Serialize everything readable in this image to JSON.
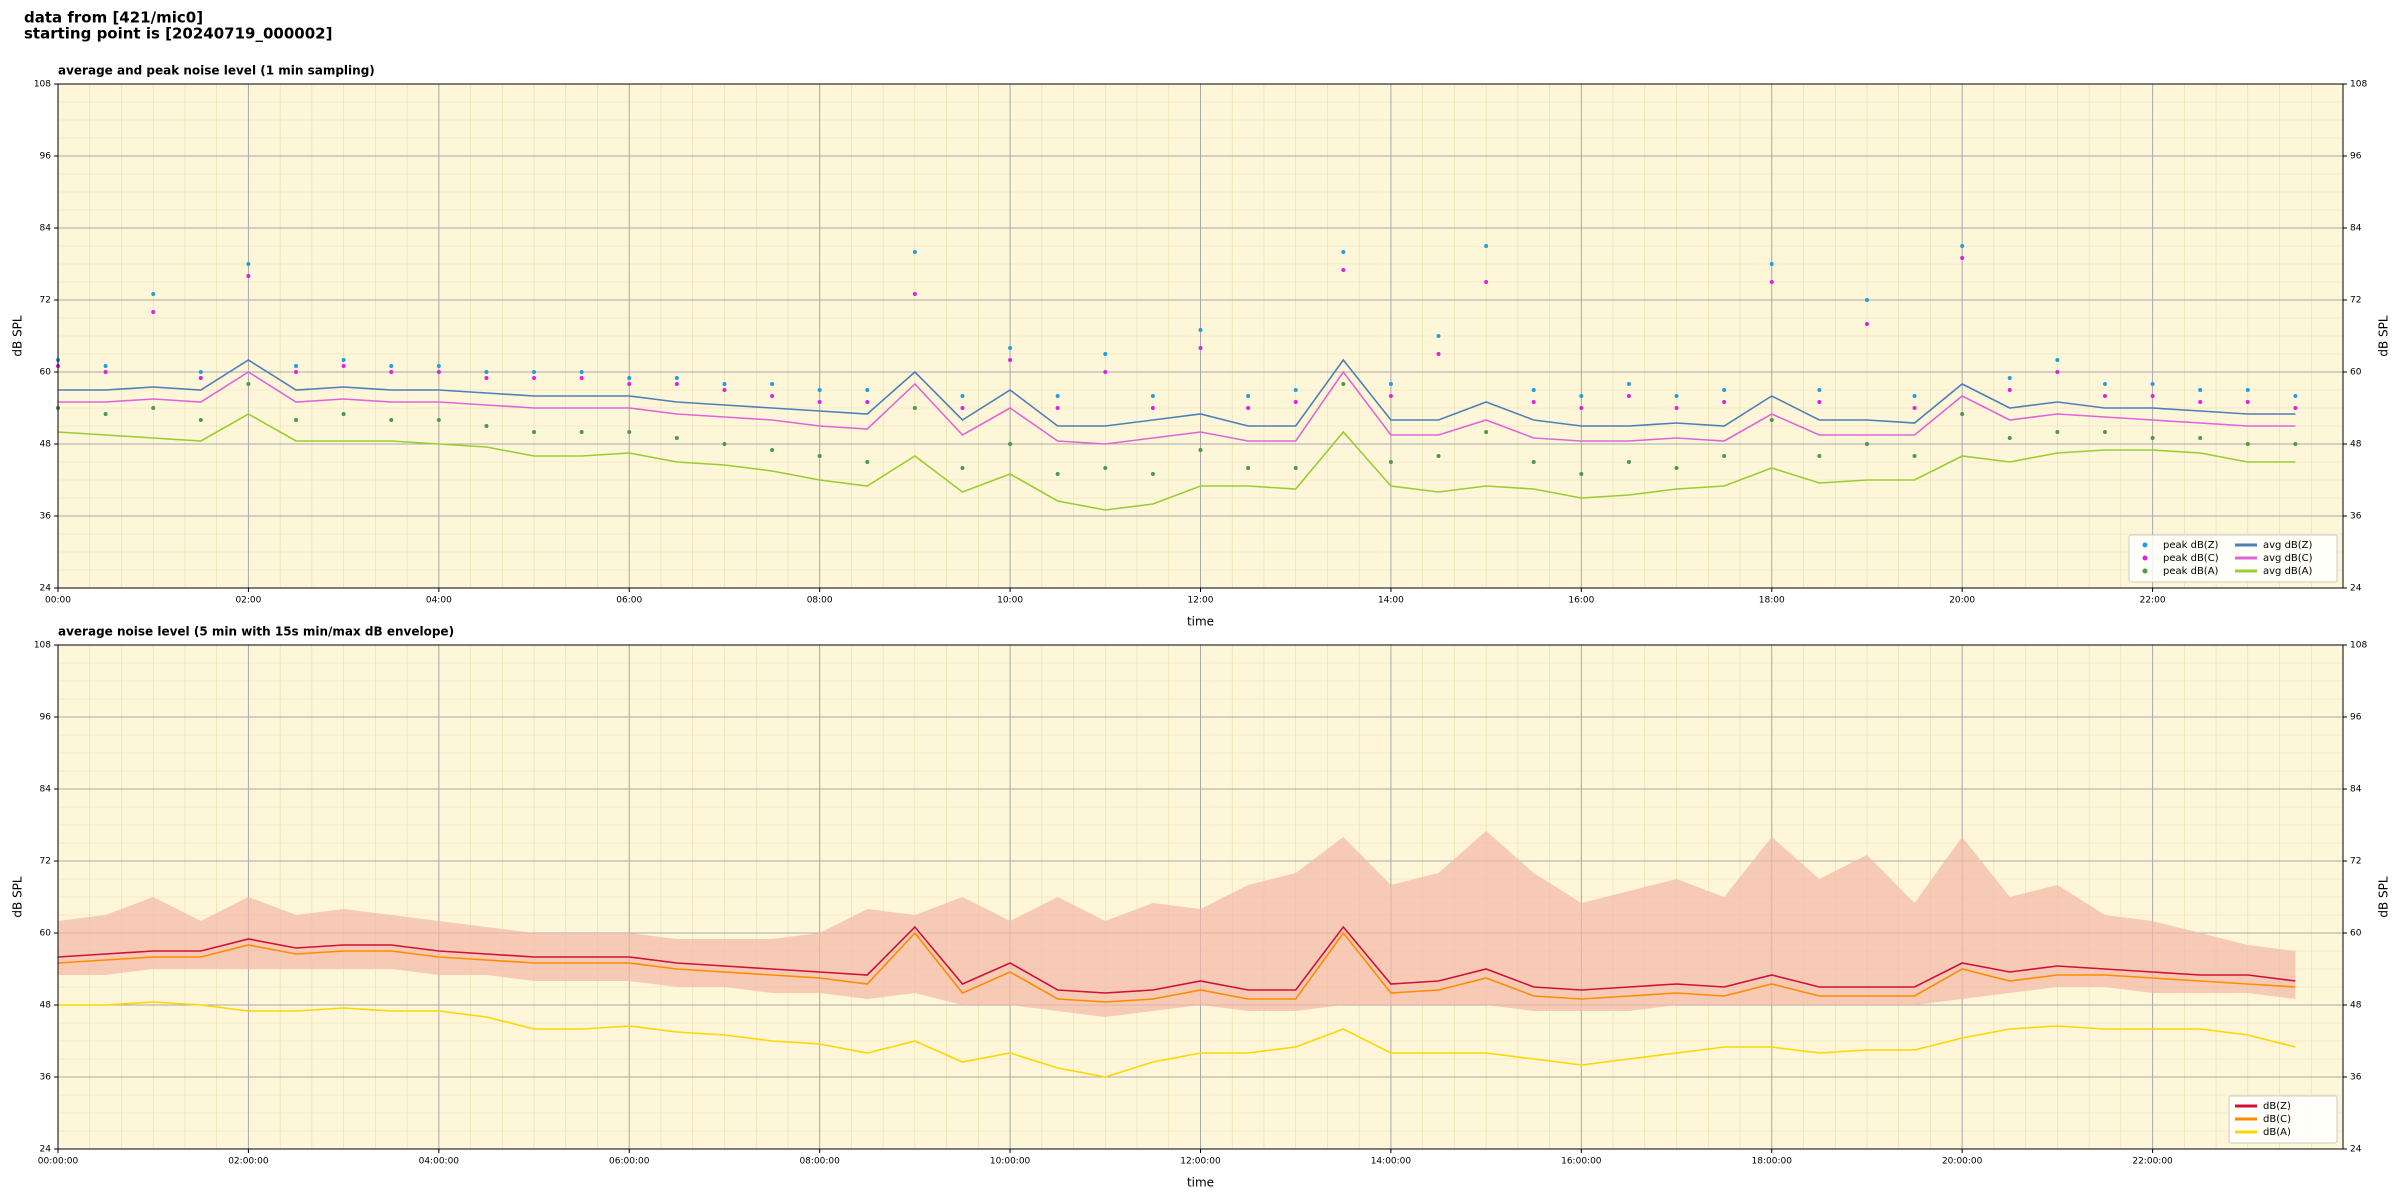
{
  "figure_title": [
    "data from [421/mic0]",
    "starting point is [20240719_000002]"
  ],
  "chart_data": [
    {
      "type": "line",
      "title": "average and peak noise level (1 min sampling)",
      "xlabel": "time",
      "ylabel": "dB SPL",
      "background": "#fdf6d8",
      "grid": true,
      "minor_grid": true,
      "legend": "lower right",
      "legend_columns": 2,
      "xlim": [
        0,
        24
      ],
      "ylim": [
        24,
        108
      ],
      "xticks": [
        {
          "value": 0,
          "label": "00:00"
        },
        {
          "value": 2,
          "label": "02:00"
        },
        {
          "value": 4,
          "label": "04:00"
        },
        {
          "value": 6,
          "label": "06:00"
        },
        {
          "value": 8,
          "label": "08:00"
        },
        {
          "value": 10,
          "label": "10:00"
        },
        {
          "value": 12,
          "label": "12:00"
        },
        {
          "value": 14,
          "label": "14:00"
        },
        {
          "value": 16,
          "label": "16:00"
        },
        {
          "value": 18,
          "label": "18:00"
        },
        {
          "value": 20,
          "label": "20:00"
        },
        {
          "value": 22,
          "label": "22:00"
        }
      ],
      "yticks": [
        24,
        36,
        48,
        60,
        72,
        84,
        96,
        108
      ],
      "x": [
        0,
        0.5,
        1,
        1.5,
        2,
        2.5,
        3,
        3.5,
        4,
        4.5,
        5,
        5.5,
        6,
        6.5,
        7,
        7.5,
        8,
        8.5,
        9,
        9.5,
        10,
        10.5,
        11,
        11.5,
        12,
        12.5,
        13,
        13.5,
        14,
        14.5,
        15,
        15.5,
        16,
        16.5,
        17,
        17.5,
        18,
        18.5,
        19,
        19.5,
        20,
        20.5,
        21,
        21.5,
        22,
        22.5,
        23,
        23.5
      ],
      "series": [
        {
          "name": "peak dB(Z)",
          "style": "dots",
          "color": "#1f9fe0",
          "values": [
            62,
            61,
            73,
            60,
            78,
            61,
            62,
            61,
            61,
            60,
            60,
            60,
            59,
            59,
            58,
            58,
            57,
            57,
            80,
            56,
            64,
            56,
            63,
            56,
            67,
            56,
            57,
            80,
            58,
            66,
            81,
            57,
            56,
            58,
            56,
            57,
            78,
            57,
            72,
            56,
            81,
            59,
            62,
            58,
            58,
            57,
            57,
            56
          ]
        },
        {
          "name": "peak dB(C)",
          "style": "dots",
          "color": "#e020e0",
          "values": [
            61,
            60,
            70,
            59,
            76,
            60,
            61,
            60,
            60,
            59,
            59,
            59,
            58,
            58,
            57,
            56,
            55,
            55,
            73,
            54,
            62,
            54,
            60,
            54,
            64,
            54,
            55,
            77,
            56,
            63,
            75,
            55,
            54,
            56,
            54,
            55,
            75,
            55,
            68,
            54,
            79,
            57,
            60,
            56,
            56,
            55,
            55,
            54
          ]
        },
        {
          "name": "peak dB(A)",
          "style": "dots",
          "color": "#4a9a4a",
          "values": [
            54,
            53,
            54,
            52,
            58,
            52,
            53,
            52,
            52,
            51,
            50,
            50,
            50,
            49,
            48,
            47,
            46,
            45,
            54,
            44,
            48,
            43,
            44,
            43,
            47,
            44,
            44,
            58,
            45,
            46,
            50,
            45,
            43,
            45,
            44,
            46,
            52,
            46,
            48,
            46,
            53,
            49,
            50,
            50,
            49,
            49,
            48,
            48
          ]
        },
        {
          "name": "avg dB(Z)",
          "style": "line",
          "color": "#4f7fb8",
          "values": [
            57,
            57,
            57.5,
            57,
            62,
            57,
            57.5,
            57,
            57,
            56.5,
            56,
            56,
            56,
            55,
            54.5,
            54,
            53.5,
            53,
            60,
            52,
            57,
            51,
            51,
            52,
            53,
            51,
            51,
            62,
            52,
            52,
            55,
            52,
            51,
            51,
            51.5,
            51,
            56,
            52,
            52,
            51.5,
            58,
            54,
            55,
            54,
            54,
            53.5,
            53,
            53
          ]
        },
        {
          "name": "avg dB(C)",
          "style": "line",
          "color": "#e066d8",
          "values": [
            55,
            55,
            55.5,
            55,
            60,
            55,
            55.5,
            55,
            55,
            54.5,
            54,
            54,
            54,
            53,
            52.5,
            52,
            51,
            50.5,
            58,
            49.5,
            54,
            48.5,
            48,
            49,
            50,
            48.5,
            48.5,
            60,
            49.5,
            49.5,
            52,
            49,
            48.5,
            48.5,
            49,
            48.5,
            53,
            49.5,
            49.5,
            49.5,
            56,
            52,
            53,
            52.5,
            52,
            51.5,
            51,
            51
          ]
        },
        {
          "name": "avg dB(A)",
          "style": "line",
          "color": "#9acd32",
          "values": [
            50,
            49.5,
            49,
            48.5,
            53,
            48.5,
            48.5,
            48.5,
            48,
            47.5,
            46,
            46,
            46.5,
            45,
            44.5,
            43.5,
            42,
            41,
            46,
            40,
            43,
            38.5,
            37,
            38,
            41,
            41,
            40.5,
            50,
            41,
            40,
            41,
            40.5,
            39,
            39.5,
            40.5,
            41,
            44,
            41.5,
            42,
            42,
            46,
            45,
            46.5,
            47,
            47,
            46.5,
            45,
            45
          ]
        }
      ]
    },
    {
      "type": "line",
      "title": "average noise level (5 min with 15s min/max dB envelope)",
      "xlabel": "time",
      "ylabel": "dB SPL",
      "background": "#fdf6d8",
      "grid": true,
      "minor_grid": true,
      "legend": "lower right",
      "legend_columns": 1,
      "xlim": [
        0,
        24
      ],
      "ylim": [
        24,
        108
      ],
      "xticks": [
        {
          "value": 0,
          "label": "00:00:00"
        },
        {
          "value": 2,
          "label": "02:00:00"
        },
        {
          "value": 4,
          "label": "04:00:00"
        },
        {
          "value": 6,
          "label": "06:00:00"
        },
        {
          "value": 8,
          "label": "08:00:00"
        },
        {
          "value": 10,
          "label": "10:00:00"
        },
        {
          "value": 12,
          "label": "12:00:00"
        },
        {
          "value": 14,
          "label": "14:00:00"
        },
        {
          "value": 16,
          "label": "16:00:00"
        },
        {
          "value": 18,
          "label": "18:00:00"
        },
        {
          "value": 20,
          "label": "20:00:00"
        },
        {
          "value": 22,
          "label": "22:00:00"
        }
      ],
      "yticks": [
        24,
        36,
        48,
        60,
        72,
        84,
        96,
        108
      ],
      "x": [
        0,
        0.5,
        1,
        1.5,
        2,
        2.5,
        3,
        3.5,
        4,
        4.5,
        5,
        5.5,
        6,
        6.5,
        7,
        7.5,
        8,
        8.5,
        9,
        9.5,
        10,
        10.5,
        11,
        11.5,
        12,
        12.5,
        13,
        13.5,
        14,
        14.5,
        15,
        15.5,
        16,
        16.5,
        17,
        17.5,
        18,
        18.5,
        19,
        19.5,
        20,
        20.5,
        21,
        21.5,
        22,
        22.5,
        23,
        23.5
      ],
      "envelope": {
        "color": "#f4b8a8",
        "max": [
          62,
          63,
          66,
          62,
          66,
          63,
          64,
          63,
          62,
          61,
          60,
          60,
          60,
          59,
          59,
          59,
          60,
          64,
          63,
          66,
          62,
          66,
          62,
          65,
          64,
          68,
          70,
          76,
          68,
          70,
          77,
          70,
          65,
          67,
          69,
          66,
          76,
          69,
          73,
          65,
          76,
          66,
          68,
          63,
          62,
          60,
          58,
          57
        ],
        "min": [
          53,
          53,
          54,
          54,
          54,
          54,
          54,
          54,
          53,
          53,
          52,
          52,
          52,
          51,
          51,
          50,
          50,
          49,
          50,
          48,
          48,
          47,
          46,
          47,
          48,
          47,
          47,
          48,
          48,
          48,
          48,
          47,
          47,
          47,
          48,
          48,
          48,
          48,
          48,
          48,
          49,
          50,
          51,
          51,
          50,
          50,
          50,
          49
        ]
      },
      "series": [
        {
          "name": "dB(Z)",
          "style": "line",
          "color": "#d0103a",
          "values": [
            56,
            56.5,
            57,
            57,
            59,
            57.5,
            58,
            58,
            57,
            56.5,
            56,
            56,
            56,
            55,
            54.5,
            54,
            53.5,
            53,
            61,
            51.5,
            55,
            50.5,
            50,
            50.5,
            52,
            50.5,
            50.5,
            61,
            51.5,
            52,
            54,
            51,
            50.5,
            51,
            51.5,
            51,
            53,
            51,
            51,
            51,
            55,
            53.5,
            54.5,
            54,
            53.5,
            53,
            53,
            52
          ]
        },
        {
          "name": "dB(C)",
          "style": "line",
          "color": "#ff8c00",
          "values": [
            55,
            55.5,
            56,
            56,
            58,
            56.5,
            57,
            57,
            56,
            55.5,
            55,
            55,
            55,
            54,
            53.5,
            53,
            52.5,
            51.5,
            60,
            50,
            53.5,
            49,
            48.5,
            49,
            50.5,
            49,
            49,
            60,
            50,
            50.5,
            52.5,
            49.5,
            49,
            49.5,
            50,
            49.5,
            51.5,
            49.5,
            49.5,
            49.5,
            54,
            52,
            53,
            53,
            52.5,
            52,
            51.5,
            51
          ]
        },
        {
          "name": "dB(A)",
          "style": "line",
          "color": "#ffd700",
          "values": [
            48,
            48,
            48.5,
            48,
            47,
            47,
            47.5,
            47,
            47,
            46,
            44,
            44,
            44.5,
            43.5,
            43,
            42,
            41.5,
            40,
            42,
            38.5,
            40,
            37.5,
            36,
            38.5,
            40,
            40,
            41,
            44,
            40,
            40,
            40,
            39,
            38,
            39,
            40,
            41,
            41,
            40,
            40.5,
            40.5,
            42.5,
            44,
            44.5,
            44,
            44,
            44,
            43,
            41
          ]
        }
      ]
    }
  ]
}
